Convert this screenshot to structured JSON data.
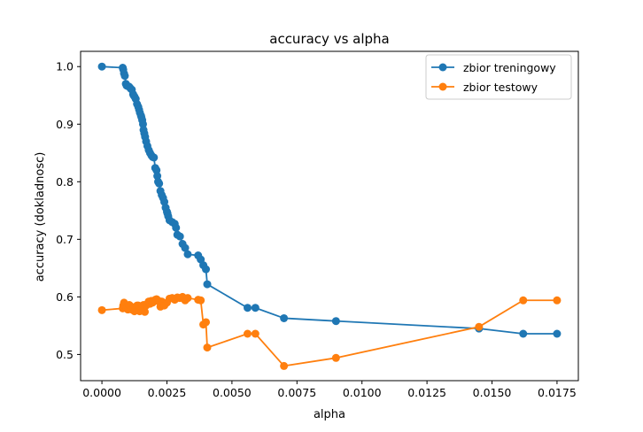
{
  "chart_data": {
    "type": "line",
    "title": "accuracy vs alpha",
    "xlabel": "alpha",
    "ylabel": "accuracy (dokladnosc)",
    "xlim": [
      -0.00082,
      0.01832
    ],
    "ylim": [
      0.4545,
      1.0265
    ],
    "xticks": [
      0.0,
      0.0025,
      0.005,
      0.0075,
      0.01,
      0.0125,
      0.015,
      0.0175
    ],
    "xtick_labels": [
      "0.0000",
      "0.0025",
      "0.0050",
      "0.0075",
      "0.0100",
      "0.0125",
      "0.0150",
      "0.0175"
    ],
    "yticks": [
      0.5,
      0.6,
      0.7,
      0.8,
      0.9,
      1.0
    ],
    "ytick_labels": [
      "0.5",
      "0.6",
      "0.7",
      "0.8",
      "0.9",
      "1.0"
    ],
    "grid": false,
    "legend_position": "top-right",
    "series": [
      {
        "name": "zbior treningowy",
        "color": "#1f77b4",
        "x": [
          0.0,
          0.0008,
          0.00082,
          0.00085,
          0.00088,
          0.00092,
          0.00095,
          0.001,
          0.00105,
          0.0011,
          0.00115,
          0.0012,
          0.00122,
          0.00125,
          0.0013,
          0.00135,
          0.0014,
          0.00143,
          0.00146,
          0.0015,
          0.00152,
          0.00155,
          0.00158,
          0.0016,
          0.00163,
          0.00166,
          0.0017,
          0.00175,
          0.0018,
          0.00185,
          0.0019,
          0.00195,
          0.002,
          0.00205,
          0.0021,
          0.00213,
          0.00216,
          0.0022,
          0.00225,
          0.0023,
          0.00235,
          0.0024,
          0.00245,
          0.0025,
          0.00252,
          0.00255,
          0.0026,
          0.0027,
          0.0028,
          0.00285,
          0.0029,
          0.003,
          0.0031,
          0.0032,
          0.0033,
          0.0037,
          0.0038,
          0.0039,
          0.004,
          0.00405,
          0.0056,
          0.0059,
          0.007,
          0.009,
          0.0145,
          0.0162,
          0.0175
        ],
        "y": [
          1.0,
          0.998,
          0.995,
          0.988,
          0.984,
          0.97,
          0.967,
          0.966,
          0.965,
          0.962,
          0.96,
          0.952,
          0.95,
          0.948,
          0.944,
          0.935,
          0.93,
          0.925,
          0.92,
          0.915,
          0.912,
          0.907,
          0.9,
          0.89,
          0.884,
          0.878,
          0.87,
          0.862,
          0.855,
          0.85,
          0.846,
          0.843,
          0.842,
          0.824,
          0.82,
          0.81,
          0.8,
          0.797,
          0.784,
          0.777,
          0.772,
          0.765,
          0.755,
          0.748,
          0.745,
          0.74,
          0.733,
          0.73,
          0.727,
          0.72,
          0.708,
          0.705,
          0.692,
          0.685,
          0.674,
          0.672,
          0.665,
          0.655,
          0.648,
          0.622,
          0.581,
          0.581,
          0.563,
          0.558,
          0.545,
          0.536,
          0.536
        ]
      },
      {
        "name": "zbior testowy",
        "color": "#ff7f0e",
        "x": [
          0.0,
          0.0008,
          0.00082,
          0.00085,
          0.0009,
          0.00095,
          0.001,
          0.00105,
          0.0011,
          0.00115,
          0.0012,
          0.00125,
          0.0013,
          0.00135,
          0.0014,
          0.00145,
          0.0015,
          0.00155,
          0.0016,
          0.00165,
          0.0017,
          0.00175,
          0.0018,
          0.00185,
          0.0019,
          0.00195,
          0.002,
          0.00205,
          0.0021,
          0.00215,
          0.0022,
          0.00225,
          0.0023,
          0.00235,
          0.0024,
          0.0025,
          0.0026,
          0.0027,
          0.0028,
          0.0029,
          0.003,
          0.0031,
          0.0032,
          0.0033,
          0.0037,
          0.0038,
          0.0039,
          0.004,
          0.00405,
          0.0056,
          0.0059,
          0.007,
          0.009,
          0.0145,
          0.0162,
          0.0175
        ],
        "y": [
          0.577,
          0.58,
          0.585,
          0.59,
          0.582,
          0.58,
          0.578,
          0.586,
          0.584,
          0.578,
          0.58,
          0.575,
          0.582,
          0.585,
          0.585,
          0.575,
          0.58,
          0.582,
          0.586,
          0.574,
          0.585,
          0.588,
          0.592,
          0.588,
          0.593,
          0.59,
          0.592,
          0.595,
          0.596,
          0.594,
          0.592,
          0.583,
          0.592,
          0.588,
          0.585,
          0.59,
          0.597,
          0.598,
          0.595,
          0.599,
          0.598,
          0.6,
          0.594,
          0.598,
          0.595,
          0.594,
          0.552,
          0.556,
          0.512,
          0.536,
          0.536,
          0.48,
          0.494,
          0.548,
          0.594,
          0.594
        ]
      }
    ]
  }
}
